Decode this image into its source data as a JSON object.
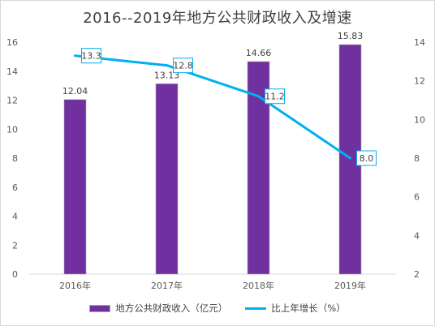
{
  "chart_data": {
    "type": "bar+line",
    "title": "2016--2019年地方公共财政收入及增速",
    "categories": [
      "2016年",
      "2017年",
      "2018年",
      "2019年"
    ],
    "series": [
      {
        "name": "地方公共财政收入（亿元）",
        "type": "bar",
        "axis": "left",
        "values": [
          12.04,
          13.13,
          14.66,
          15.83
        ],
        "color": "#7030a0"
      },
      {
        "name": "比上年增长（%）",
        "type": "line",
        "axis": "right",
        "values": [
          13.3,
          12.8,
          11.2,
          8.0
        ],
        "labels": [
          "13.3",
          "12.8",
          "11.2",
          "8.0"
        ],
        "color": "#00b0f0"
      }
    ],
    "y_left": {
      "min": 0,
      "max": 16,
      "ticks": [
        0,
        2,
        4,
        6,
        8,
        10,
        12,
        14,
        16
      ]
    },
    "y_right": {
      "min": 2,
      "max": 14,
      "ticks": [
        2,
        4,
        6,
        8,
        10,
        12,
        14
      ]
    },
    "grid": false,
    "legend_position": "bottom"
  }
}
